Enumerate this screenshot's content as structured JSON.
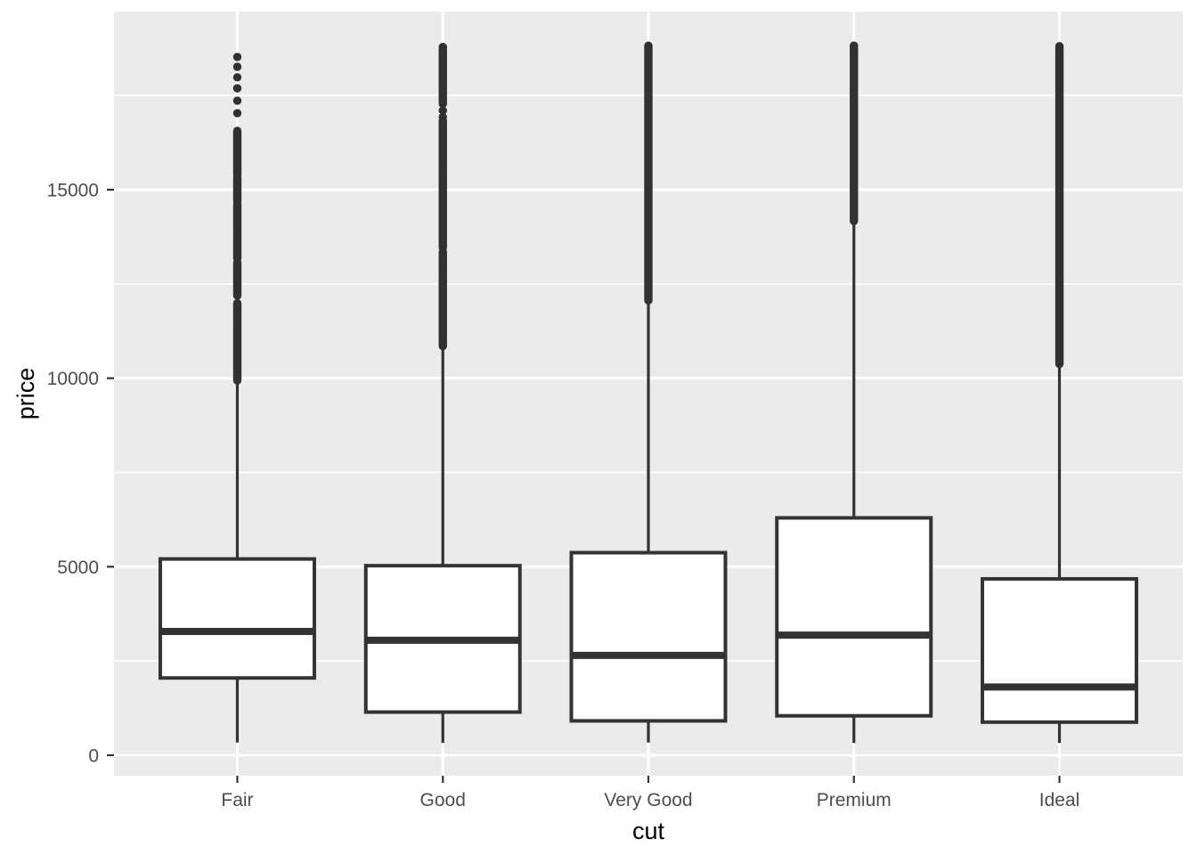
{
  "figure": {
    "background": "#FFFFFF"
  },
  "style": {
    "panel_bg": "#EBEBEB",
    "grid_color": "#FFFFFF",
    "box_fill": "#FFFFFF",
    "box_stroke": "#333333",
    "outlier_color": "#313131",
    "axis_text_color": "#4D4D4D",
    "axis_title_color": "#000000",
    "tick_mark_color": "#333333"
  },
  "chart_data": {
    "type": "boxplot",
    "title": "",
    "xlabel": "cut",
    "ylabel": "price",
    "legend": "none",
    "grid": "on",
    "categories": [
      "Fair",
      "Good",
      "Very Good",
      "Premium",
      "Ideal"
    ],
    "y_ticks": [
      0,
      5000,
      10000,
      15000
    ],
    "y_tick_labels": [
      "0",
      "5000",
      "10000",
      "15000"
    ],
    "y_minor_gridlines": [
      2500,
      7500,
      12500,
      17500
    ],
    "ylim": [
      -540,
      19724
    ],
    "series": [
      {
        "name": "Fair",
        "lower_whisker": 337,
        "q1": 2050,
        "median": 3282,
        "q3": 5206,
        "upper_whisker": 9900,
        "outlier_points": [
          18520,
          18260,
          17980,
          17690,
          17360,
          17030
        ],
        "outlier_bands": [
          [
            16560,
            15390
          ],
          [
            15315,
            14680
          ],
          [
            14600,
            13970
          ],
          [
            13930,
            13180
          ],
          [
            13060,
            12470
          ],
          [
            12430,
            12190
          ],
          [
            11990,
            11440
          ],
          [
            11400,
            9940
          ]
        ]
      },
      {
        "name": "Good",
        "lower_whisker": 327,
        "q1": 1145,
        "median": 3050,
        "q3": 5028,
        "upper_whisker": 10842,
        "outlier_points": [
          17100,
          16930
        ],
        "outlier_bands": [
          [
            18788,
            18160
          ],
          [
            18110,
            17640
          ],
          [
            17590,
            17280
          ],
          [
            16830,
            15550
          ],
          [
            15500,
            13465
          ],
          [
            13345,
            10852
          ]
        ]
      },
      {
        "name": "Very Good",
        "lower_whisker": 336,
        "q1": 912,
        "median": 2648,
        "q3": 5373,
        "upper_whisker": 12057,
        "outlier_points": [],
        "outlier_bands": [
          [
            18818,
            12064
          ]
        ]
      },
      {
        "name": "Premium",
        "lower_whisker": 326,
        "q1": 1046,
        "median": 3185,
        "q3": 6296,
        "upper_whisker": 14166,
        "outlier_points": [],
        "outlier_bands": [
          [
            18823,
            14171
          ]
        ]
      },
      {
        "name": "Ideal",
        "lower_whisker": 326,
        "q1": 878,
        "median": 1810,
        "q3": 4678,
        "upper_whisker": 10372,
        "outlier_points": [],
        "outlier_bands": [
          [
            18806,
            10379
          ]
        ]
      }
    ]
  }
}
